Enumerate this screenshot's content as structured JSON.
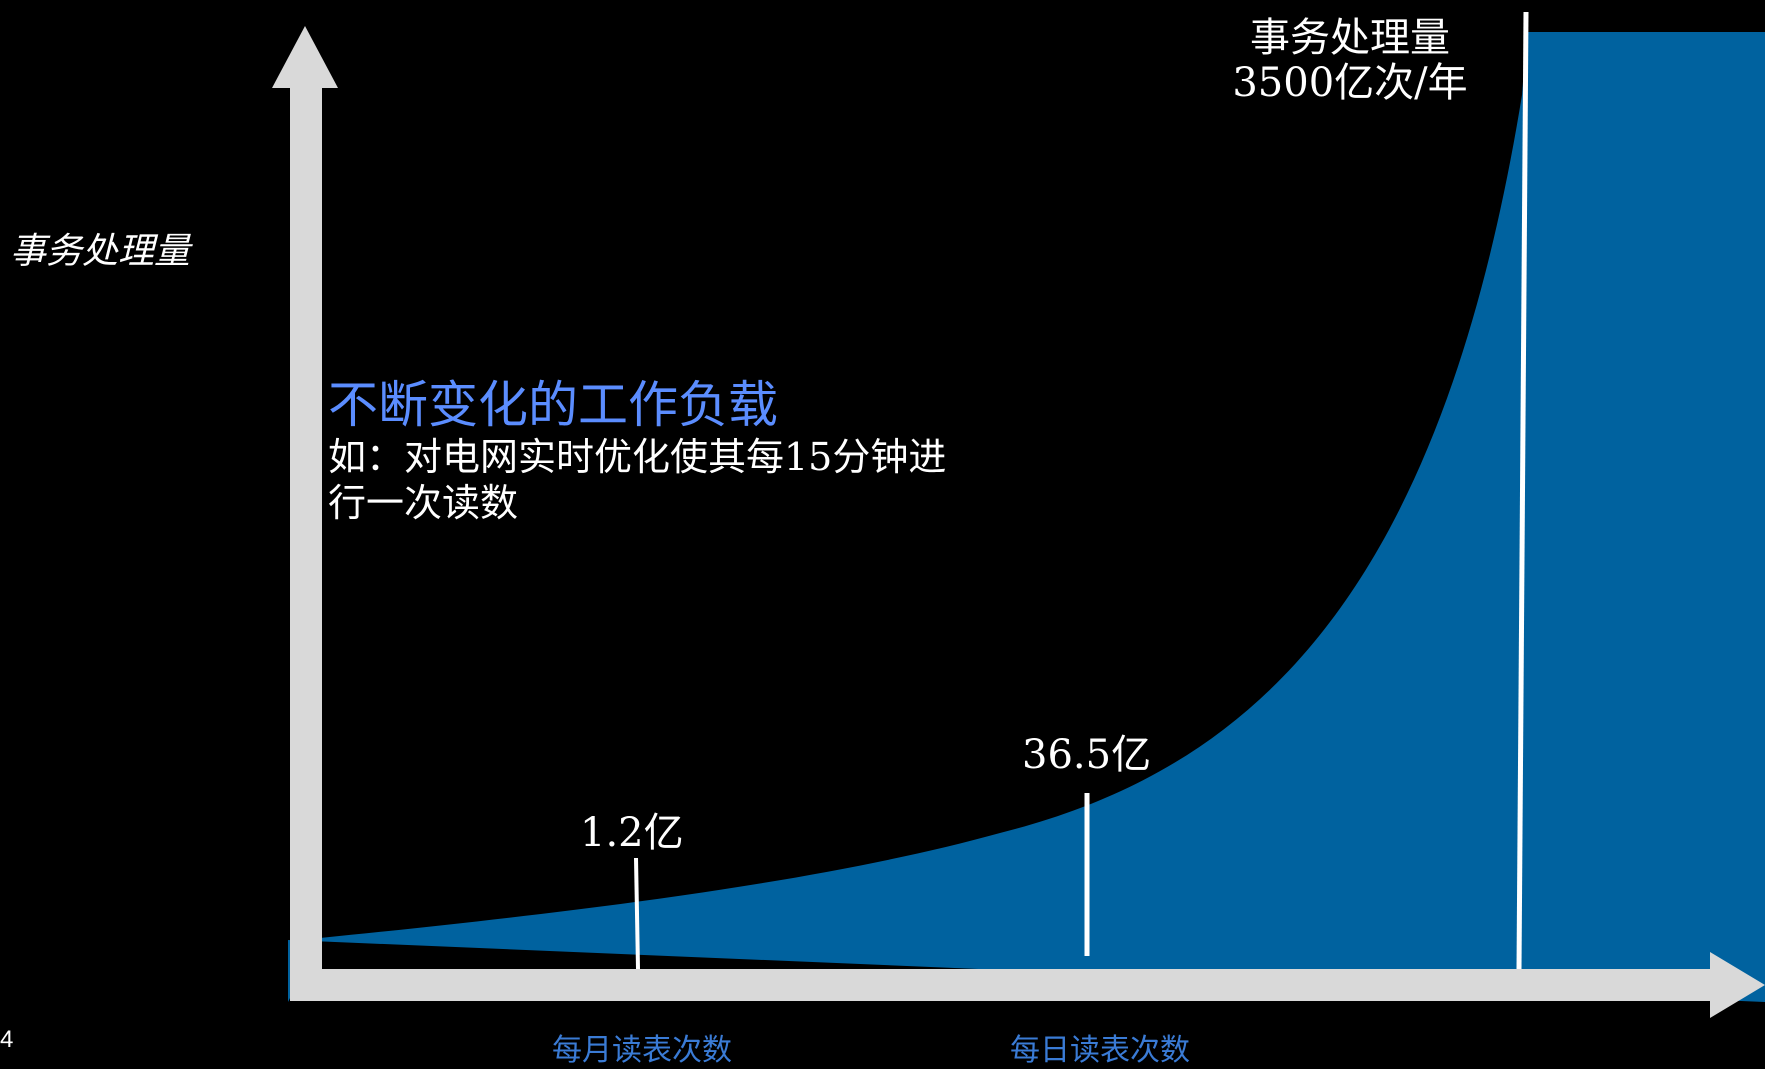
{
  "slide_number": "4",
  "y_axis_label": "事务处理量",
  "headline": "不断变化的工作负载",
  "example_lines": [
    "如：对电网实时优化使其每15分钟进",
    "行一次读数"
  ],
  "peak_label_lines": [
    "事务处理量",
    "3500亿次/年"
  ],
  "colors": {
    "background": "#000000",
    "area_fill": "#00629f",
    "axis": "#d9d9d9",
    "marker_lines": "#ffffff",
    "headline": "#5b8dff",
    "category_labels": "#3a7bd5"
  },
  "chart_data": {
    "type": "area",
    "title": "",
    "ylabel": "事务处理量",
    "xlabel": "",
    "grid": false,
    "categories": [
      "每月读表次数",
      "每日读表次数"
    ],
    "points": [
      {
        "label": "1.2亿",
        "category": "每月读表次数"
      },
      {
        "label": "36.5亿",
        "category": "每日读表次数"
      },
      {
        "label": "3500亿次/年",
        "category": ""
      }
    ]
  }
}
